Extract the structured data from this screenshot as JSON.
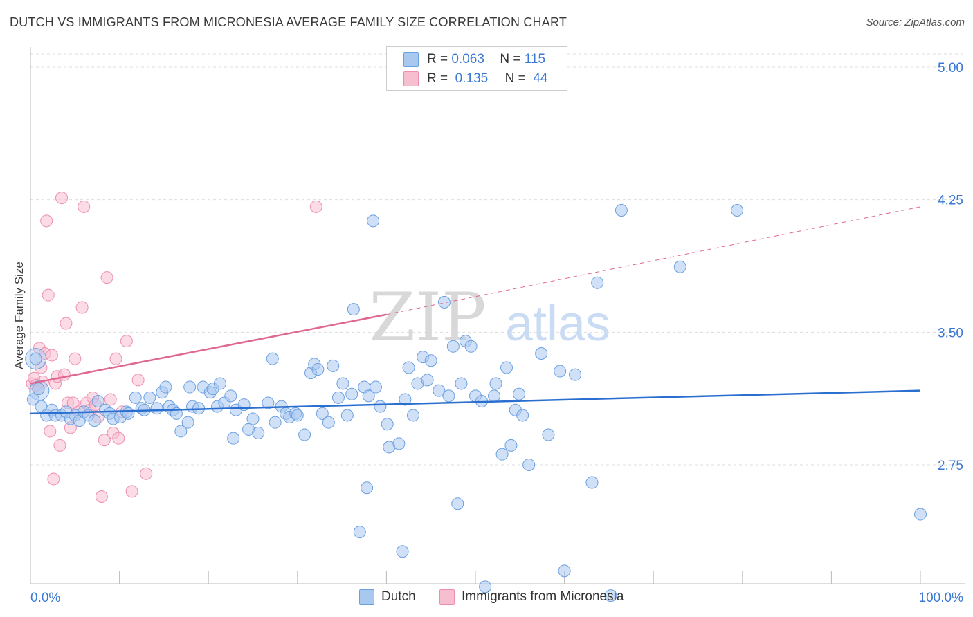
{
  "title": "DUTCH VS IMMIGRANTS FROM MICRONESIA AVERAGE FAMILY SIZE CORRELATION CHART",
  "source": "Source: ZipAtlas.com",
  "watermark": {
    "zip": "ZIP",
    "atlas": "atlas"
  },
  "legend": {
    "rows": [
      {
        "r_label": "R =",
        "r_value": "0.063",
        "n_label": "N =",
        "n_value": "115"
      },
      {
        "r_label": "R =",
        "r_value": "0.135",
        "n_label": "N =",
        "n_value": "44"
      }
    ]
  },
  "bottom_legend": {
    "dutch": "Dutch",
    "micronesia": "Immigrants from Micronesia"
  },
  "colors": {
    "dutch_fill": "#a9c8f0",
    "dutch_stroke": "#6a9fe0",
    "dutch_line": "#2a6fcf",
    "micro_fill": "#f7bed0",
    "micro_stroke": "#ee8eae",
    "micro_line": "#e06890",
    "axis_text": "#3a78d4",
    "grid": "#dddddd"
  },
  "chart_data": {
    "type": "scatter",
    "title": "DUTCH VS IMMIGRANTS FROM MICRONESIA AVERAGE FAMILY SIZE CORRELATION CHART",
    "xlabel": "",
    "ylabel": "Average Family Size",
    "xlim": [
      0,
      100
    ],
    "ylim": [
      2.0,
      5.1
    ],
    "x_tick_labels": [
      "0.0%",
      "100.0%"
    ],
    "y_ticks": [
      2.75,
      3.5,
      4.25,
      5.0
    ],
    "y_tick_labels": [
      "2.75",
      "3.50",
      "4.25",
      "5.00"
    ],
    "grid": "horizontal-dashed",
    "legend_placement": "top-center",
    "series": [
      {
        "name": "Dutch",
        "R": 0.063,
        "N": 115,
        "trend": {
          "x": [
            0,
            100
          ],
          "y": [
            3.04,
            3.17
          ]
        },
        "points": [
          [
            0.3,
            3.12
          ],
          [
            0.6,
            3.35
          ],
          [
            0.9,
            3.18
          ],
          [
            1.2,
            3.08
          ],
          [
            1.8,
            3.03
          ],
          [
            2.4,
            3.06
          ],
          [
            2.8,
            3.03
          ],
          [
            3.5,
            3.03
          ],
          [
            4.0,
            3.05
          ],
          [
            4.5,
            3.01
          ],
          [
            5.0,
            3.03
          ],
          [
            5.5,
            3.0
          ],
          [
            6.0,
            3.05
          ],
          [
            6.5,
            3.03
          ],
          [
            7.2,
            3.0
          ],
          [
            7.6,
            3.11
          ],
          [
            8.4,
            3.06
          ],
          [
            8.9,
            3.04
          ],
          [
            9.3,
            3.01
          ],
          [
            10.1,
            3.02
          ],
          [
            10.8,
            3.05
          ],
          [
            11.0,
            3.04
          ],
          [
            11.8,
            3.13
          ],
          [
            12.5,
            3.07
          ],
          [
            12.8,
            3.06
          ],
          [
            13.4,
            3.13
          ],
          [
            14.2,
            3.07
          ],
          [
            14.8,
            3.16
          ],
          [
            15.2,
            3.19
          ],
          [
            15.6,
            3.08
          ],
          [
            16.0,
            3.06
          ],
          [
            16.4,
            3.04
          ],
          [
            16.9,
            2.94
          ],
          [
            17.7,
            2.99
          ],
          [
            17.9,
            3.19
          ],
          [
            18.2,
            3.08
          ],
          [
            18.9,
            3.07
          ],
          [
            19.4,
            3.19
          ],
          [
            20.2,
            3.16
          ],
          [
            20.5,
            3.18
          ],
          [
            21.0,
            3.08
          ],
          [
            21.3,
            3.21
          ],
          [
            21.8,
            3.1
          ],
          [
            22.5,
            3.14
          ],
          [
            22.8,
            2.9
          ],
          [
            23.1,
            3.06
          ],
          [
            24.0,
            3.09
          ],
          [
            24.5,
            2.95
          ],
          [
            25.0,
            3.01
          ],
          [
            25.6,
            2.93
          ],
          [
            26.7,
            3.1
          ],
          [
            27.2,
            3.35
          ],
          [
            27.5,
            2.99
          ],
          [
            28.2,
            3.08
          ],
          [
            28.7,
            3.04
          ],
          [
            29.1,
            3.02
          ],
          [
            29.8,
            3.04
          ],
          [
            30.0,
            3.03
          ],
          [
            30.8,
            2.92
          ],
          [
            31.5,
            3.27
          ],
          [
            31.9,
            3.32
          ],
          [
            32.3,
            3.29
          ],
          [
            32.8,
            3.04
          ],
          [
            33.5,
            2.99
          ],
          [
            34.0,
            3.31
          ],
          [
            34.6,
            3.13
          ],
          [
            35.1,
            3.21
          ],
          [
            35.6,
            3.03
          ],
          [
            36.1,
            3.15
          ],
          [
            36.3,
            3.63
          ],
          [
            37.0,
            2.37
          ],
          [
            37.5,
            3.19
          ],
          [
            37.8,
            2.62
          ],
          [
            38.0,
            3.14
          ],
          [
            38.5,
            4.13
          ],
          [
            38.8,
            3.19
          ],
          [
            39.3,
            3.08
          ],
          [
            40.1,
            2.98
          ],
          [
            40.3,
            2.85
          ],
          [
            41.4,
            2.87
          ],
          [
            41.8,
            2.26
          ],
          [
            42.1,
            3.12
          ],
          [
            42.5,
            3.3
          ],
          [
            43.0,
            3.03
          ],
          [
            43.5,
            3.21
          ],
          [
            44.1,
            3.36
          ],
          [
            44.6,
            3.23
          ],
          [
            45.0,
            3.34
          ],
          [
            45.9,
            3.17
          ],
          [
            46.5,
            3.67
          ],
          [
            47.0,
            3.14
          ],
          [
            47.5,
            3.42
          ],
          [
            48.0,
            2.53
          ],
          [
            48.4,
            3.21
          ],
          [
            48.9,
            3.45
          ],
          [
            49.5,
            3.42
          ],
          [
            50.0,
            3.14
          ],
          [
            50.7,
            3.11
          ],
          [
            51.1,
            2.06
          ],
          [
            52.1,
            3.14
          ],
          [
            52.3,
            3.21
          ],
          [
            53.0,
            2.81
          ],
          [
            53.5,
            3.3
          ],
          [
            54.0,
            2.86
          ],
          [
            54.5,
            3.06
          ],
          [
            54.9,
            3.15
          ],
          [
            55.3,
            3.03
          ],
          [
            56.0,
            2.75
          ],
          [
            57.4,
            3.38
          ],
          [
            58.2,
            2.92
          ],
          [
            59.5,
            3.28
          ],
          [
            60.0,
            2.15
          ],
          [
            61.2,
            3.26
          ],
          [
            63.1,
            2.65
          ],
          [
            63.7,
            3.78
          ],
          [
            65.2,
            2.01
          ],
          [
            66.4,
            4.19
          ],
          [
            73.0,
            3.87
          ],
          [
            79.4,
            4.19
          ],
          [
            100.0,
            2.47
          ]
        ]
      },
      {
        "name": "Immigrants from Micronesia",
        "R": 0.135,
        "N": 44,
        "trend": {
          "x": [
            0,
            40
          ],
          "y": [
            3.21,
            3.6
          ]
        },
        "trend_dashed": {
          "x": [
            40,
            100
          ],
          "y": [
            3.6,
            4.21
          ]
        },
        "points": [
          [
            0.2,
            3.21
          ],
          [
            0.4,
            3.24
          ],
          [
            0.6,
            3.2
          ],
          [
            0.9,
            3.18
          ],
          [
            1.0,
            3.41
          ],
          [
            1.2,
            3.3
          ],
          [
            1.4,
            3.22
          ],
          [
            1.6,
            3.38
          ],
          [
            1.8,
            4.13
          ],
          [
            2.0,
            3.71
          ],
          [
            2.2,
            2.94
          ],
          [
            2.4,
            3.37
          ],
          [
            2.6,
            2.67
          ],
          [
            2.8,
            3.21
          ],
          [
            3.0,
            3.25
          ],
          [
            3.3,
            2.86
          ],
          [
            3.5,
            4.26
          ],
          [
            3.8,
            3.26
          ],
          [
            4.0,
            3.55
          ],
          [
            4.2,
            3.1
          ],
          [
            4.5,
            2.96
          ],
          [
            4.8,
            3.1
          ],
          [
            5.0,
            3.35
          ],
          [
            5.4,
            3.05
          ],
          [
            5.8,
            3.64
          ],
          [
            6.0,
            4.21
          ],
          [
            6.3,
            3.1
          ],
          [
            6.7,
            3.06
          ],
          [
            7.0,
            3.13
          ],
          [
            7.3,
            3.09
          ],
          [
            7.6,
            3.02
          ],
          [
            8.0,
            2.57
          ],
          [
            8.3,
            2.89
          ],
          [
            8.6,
            3.81
          ],
          [
            9.0,
            3.12
          ],
          [
            9.3,
            2.93
          ],
          [
            9.6,
            3.35
          ],
          [
            9.9,
            2.9
          ],
          [
            10.3,
            3.05
          ],
          [
            10.8,
            3.45
          ],
          [
            11.4,
            2.6
          ],
          [
            12.1,
            3.23
          ],
          [
            13.0,
            2.7
          ],
          [
            32.1,
            4.21
          ]
        ]
      }
    ]
  }
}
